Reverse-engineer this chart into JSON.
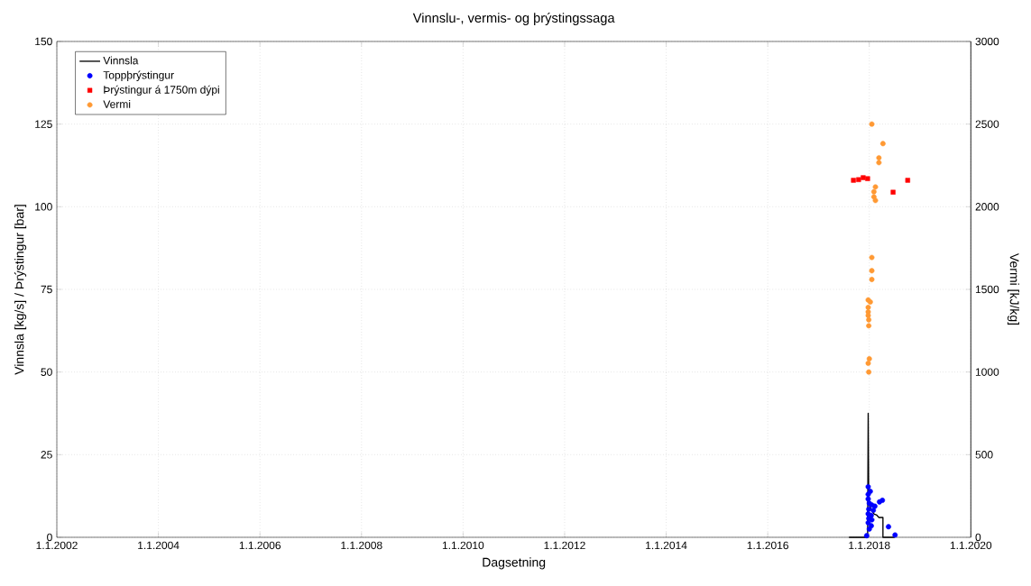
{
  "chart_data": {
    "type": "scatter",
    "title": "Vinnslu-, vermis- og þrýstingssaga",
    "xlabel": "Dagsetning",
    "ylabel": "Vinnsla [kg/s] / Þrýstingur [bar]",
    "y2label": "Vermi [kJ/kg]",
    "xlim": [
      "2002-01-01",
      "2020-01-01"
    ],
    "xticks": [
      {
        "value": "2002-01-01",
        "label": "1.1.2002"
      },
      {
        "value": "2004-01-01",
        "label": "1.1.2004"
      },
      {
        "value": "2006-01-01",
        "label": "1.1.2006"
      },
      {
        "value": "2008-01-01",
        "label": "1.1.2008"
      },
      {
        "value": "2010-01-01",
        "label": "1.1.2010"
      },
      {
        "value": "2012-01-01",
        "label": "1.1.2012"
      },
      {
        "value": "2014-01-01",
        "label": "1.1.2014"
      },
      {
        "value": "2016-01-01",
        "label": "1.1.2016"
      },
      {
        "value": "2018-01-01",
        "label": "1.1.2018"
      },
      {
        "value": "2020-01-01",
        "label": "1.1.2020"
      }
    ],
    "ylim": [
      0,
      150
    ],
    "yticks": [
      0,
      25,
      50,
      75,
      100,
      125,
      150
    ],
    "y2lim": [
      0,
      3000
    ],
    "y2ticks": [
      0,
      500,
      1000,
      1500,
      2000,
      2500,
      3000
    ],
    "grid": true,
    "legend": "top left",
    "series": [
      {
        "name": "Vinnsla",
        "type": "line",
        "color": "#000000",
        "marker": "none",
        "x": [
          "2017-08-08",
          "2017-12-20",
          "2017-12-24",
          "2017-12-28",
          "2018-01-19",
          "2018-02-06",
          "2018-02-21",
          "2018-03-11",
          "2018-04-09",
          "2018-04-09",
          "2018-07-02"
        ],
        "values": [
          0,
          0,
          37.5,
          10,
          8,
          7,
          6.8,
          6,
          6,
          0,
          0
        ]
      },
      {
        "name": "Toppþrýstingur",
        "color": "#0000ff",
        "marker": "circle",
        "x": [
          "2017-12-24",
          "2018-01-08",
          "2017-12-24",
          "2017-12-24",
          "2018-01-01",
          "2018-01-19",
          "2018-02-10",
          "2018-03-15",
          "2018-04-05",
          "2017-12-28",
          "2018-01-30",
          "2017-12-24",
          "2018-01-15",
          "2017-12-28",
          "2018-01-19",
          "2017-12-24",
          "2018-01-15",
          "2018-01-01",
          "2017-12-13",
          "2018-05-19",
          "2018-07-05"
        ],
        "values": [
          15.3,
          13.9,
          13.0,
          11.6,
          10.3,
          9.8,
          9.4,
          10.7,
          11.2,
          8.5,
          8.2,
          7.1,
          6.6,
          5.7,
          5.3,
          4.4,
          3.5,
          2.5,
          0.5,
          3.2,
          0.7
        ]
      },
      {
        "name": "Þrýstingur á 1750m dýpi",
        "color": "#ff0000",
        "marker": "square",
        "x": [
          "2017-09-09",
          "2017-10-16",
          "2017-11-18",
          "2017-12-20",
          "2018-06-21",
          "2018-10-04"
        ],
        "values": [
          108.0,
          108.2,
          108.8,
          108.5,
          104.4,
          108.0
        ]
      },
      {
        "name": "Vermi",
        "axis": "y2",
        "color": "#ff9933",
        "marker": "circle",
        "x": [
          "2018-01-19",
          "2018-04-09",
          "2018-03-11",
          "2018-03-11",
          "2018-02-14",
          "2018-02-03",
          "2018-02-03",
          "2018-02-14",
          "2018-01-19",
          "2018-01-19",
          "2018-01-19",
          "2017-12-24",
          "2018-01-08",
          "2017-12-24",
          "2017-12-24",
          "2017-12-24",
          "2017-12-28",
          "2017-12-28",
          "2018-01-01",
          "2017-12-24",
          "2017-12-28"
        ],
        "values": [
          2500,
          2382,
          2296,
          2267,
          2120,
          2091,
          2060,
          2038,
          1693,
          1613,
          1560,
          1436,
          1424,
          1391,
          1364,
          1342,
          1316,
          1280,
          1080,
          1053,
          1000
        ]
      }
    ]
  }
}
